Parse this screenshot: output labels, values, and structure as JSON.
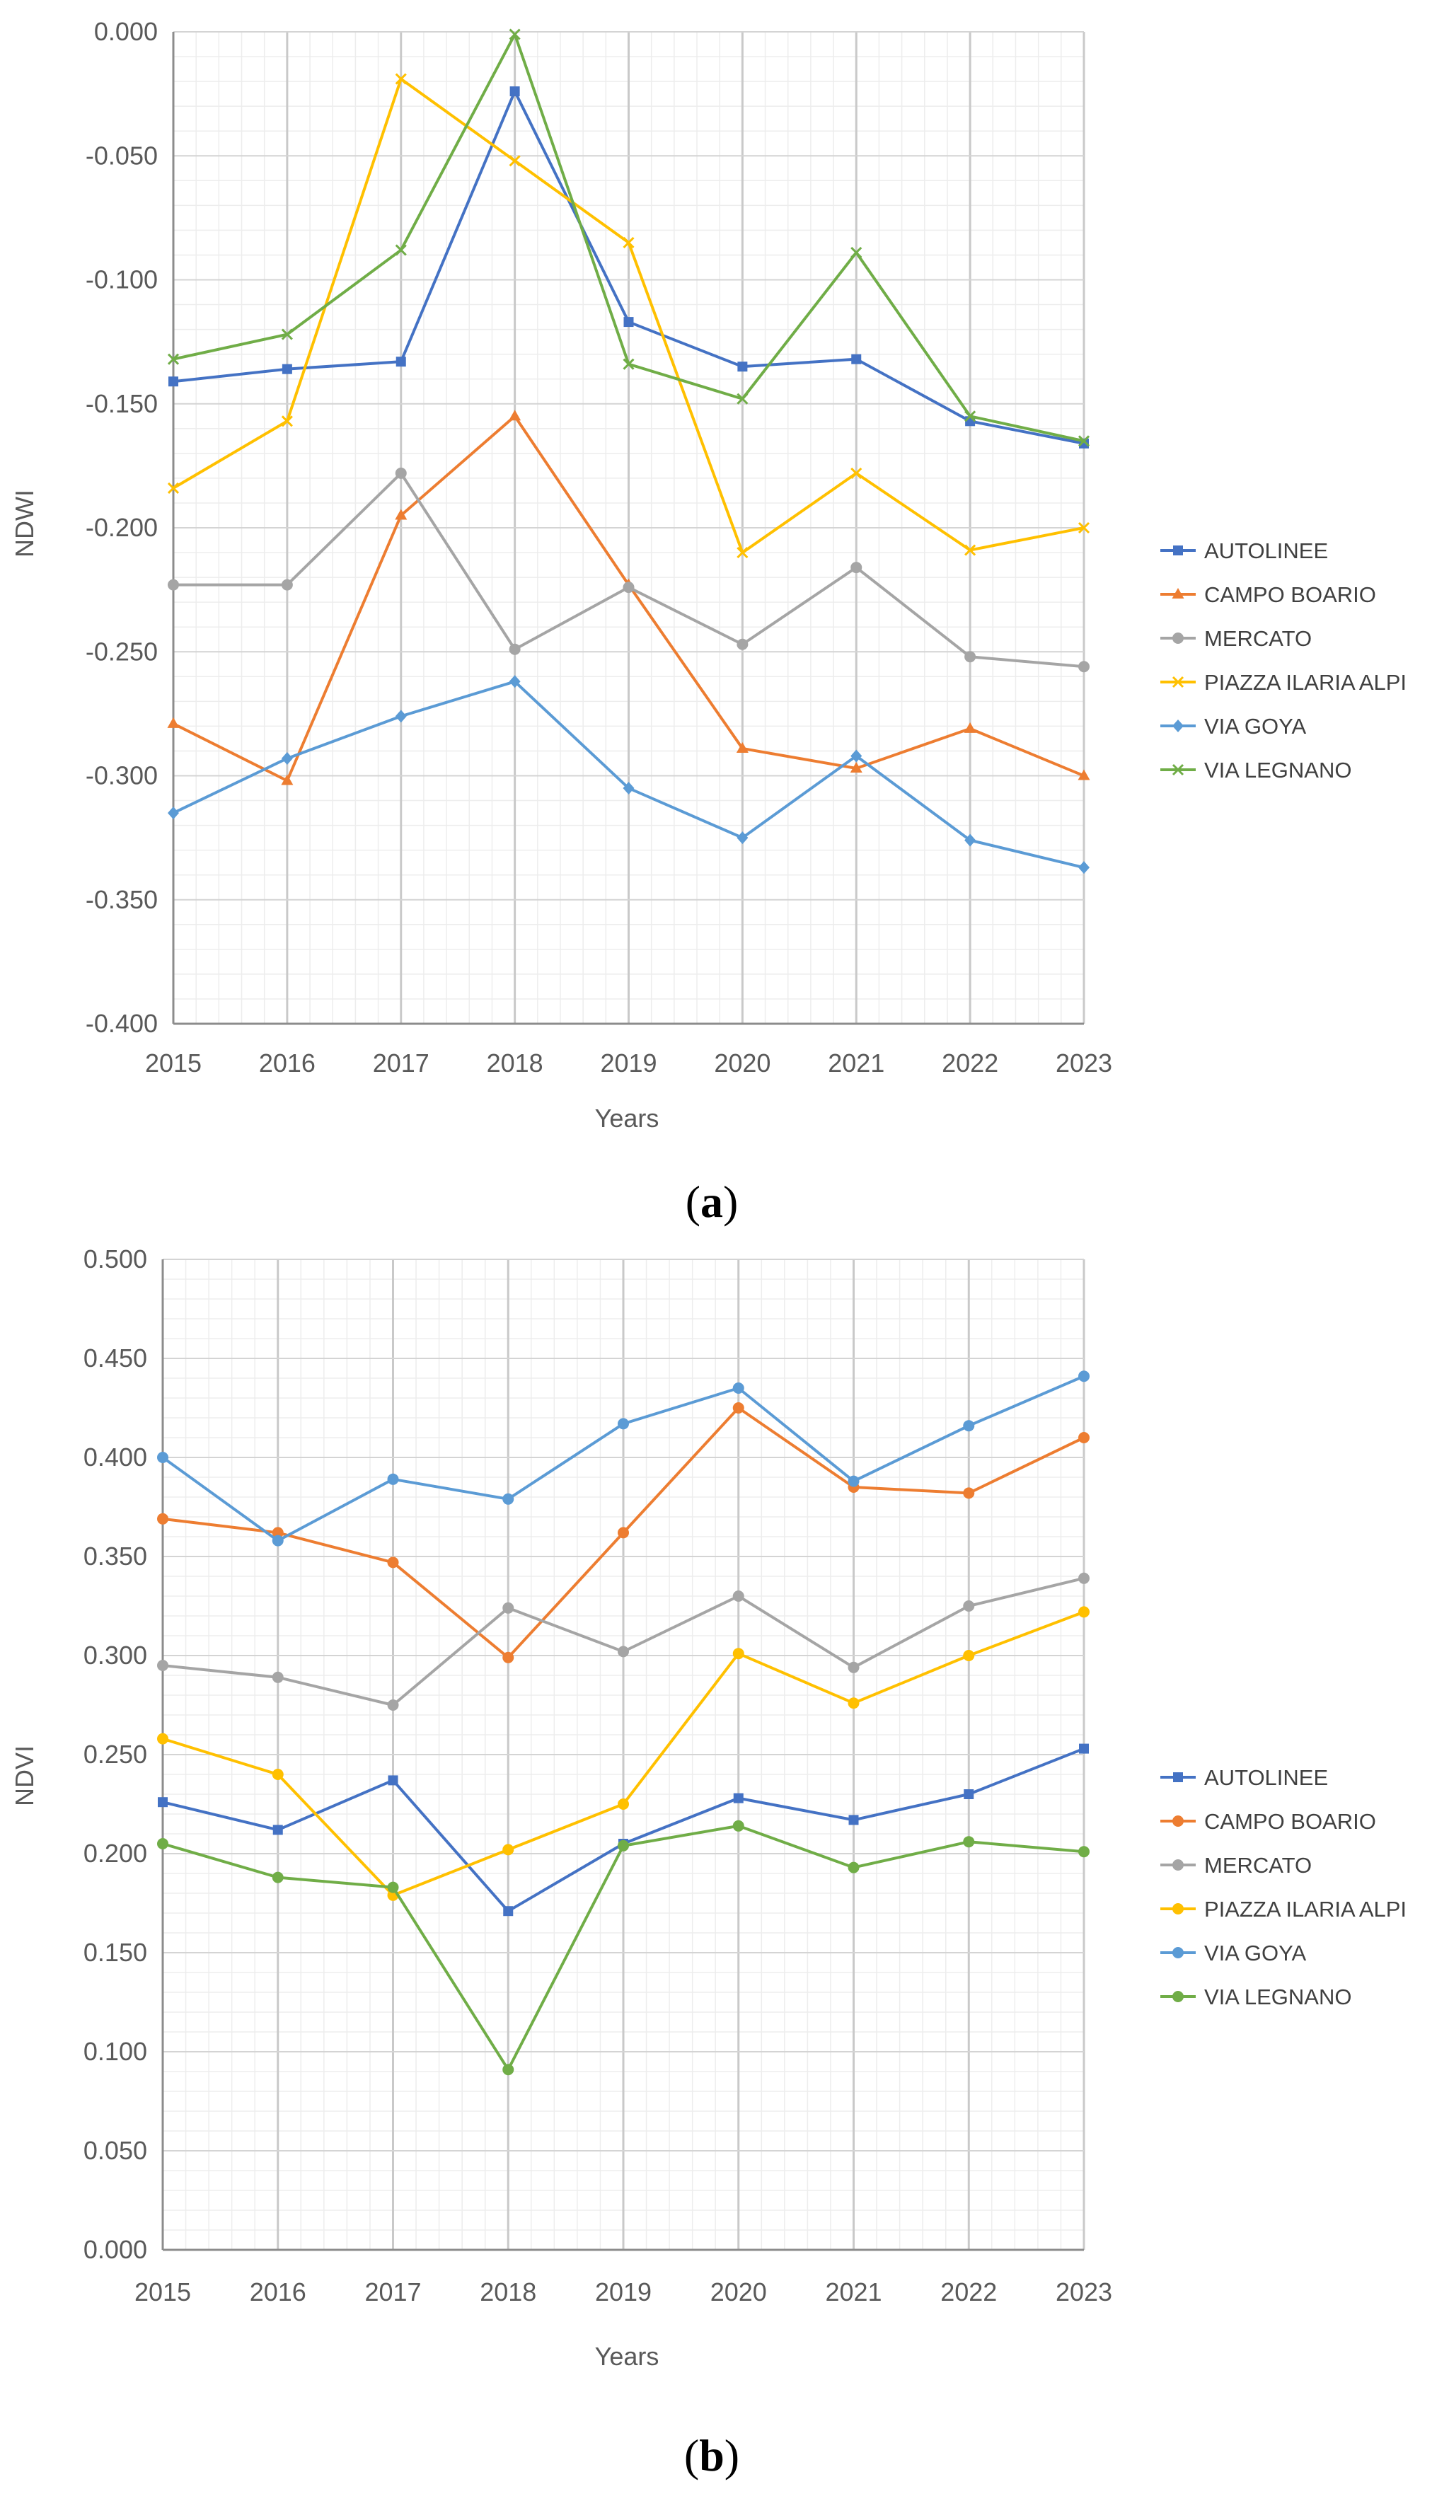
{
  "chart_data": [
    {
      "panel": "a",
      "panel_label": {
        "open": "(",
        "letter": "a",
        "close": ")"
      },
      "type": "line",
      "title": "",
      "xlabel": "Years",
      "ylabel": "NDWI",
      "ylim": [
        -0.4,
        0.0
      ],
      "y_major_step": 0.05,
      "y_minor_per_major": 5,
      "x_minor_per_major": 5,
      "y_decimals": 3,
      "grid": true,
      "legend_position": "right",
      "categories": [
        "2015",
        "2016",
        "2017",
        "2018",
        "2019",
        "2020",
        "2021",
        "2022",
        "2023"
      ],
      "series": [
        {
          "name": "AUTOLINEE",
          "color": "#4472C4",
          "marker": "square",
          "values": [
            -0.141,
            -0.136,
            -0.133,
            -0.024,
            -0.117,
            -0.135,
            -0.132,
            -0.157,
            -0.166
          ]
        },
        {
          "name": "CAMPO BOARIO",
          "color": "#ED7D31",
          "marker": "triangle",
          "values": [
            -0.279,
            -0.302,
            -0.195,
            -0.155,
            -0.223,
            -0.289,
            -0.297,
            -0.281,
            -0.3
          ]
        },
        {
          "name": "MERCATO",
          "color": "#A5A5A5",
          "marker": "circle",
          "values": [
            -0.223,
            -0.223,
            -0.178,
            -0.249,
            -0.224,
            -0.247,
            -0.216,
            -0.252,
            -0.256
          ]
        },
        {
          "name": "PIAZZA ILARIA ALPI",
          "color": "#FFC000",
          "marker": "x",
          "values": [
            -0.184,
            -0.157,
            -0.019,
            -0.052,
            -0.085,
            -0.21,
            -0.178,
            -0.209,
            -0.2
          ]
        },
        {
          "name": "VIA GOYA",
          "color": "#5B9BD5",
          "marker": "diamond",
          "values": [
            -0.315,
            -0.293,
            -0.276,
            -0.262,
            -0.305,
            -0.325,
            -0.292,
            -0.326,
            -0.337
          ]
        },
        {
          "name": "VIA LEGNANO",
          "color": "#70AD47",
          "marker": "x",
          "values": [
            -0.132,
            -0.122,
            -0.088,
            -0.001,
            -0.134,
            -0.148,
            -0.089,
            -0.155,
            -0.165
          ]
        }
      ]
    },
    {
      "panel": "b",
      "panel_label": {
        "open": "(",
        "letter": "b",
        "close": ")"
      },
      "type": "line",
      "title": "",
      "xlabel": "Years",
      "ylabel": "NDVI",
      "ylim": [
        0.0,
        0.5
      ],
      "y_major_step": 0.05,
      "y_minor_per_major": 5,
      "x_minor_per_major": 5,
      "y_decimals": 3,
      "grid": true,
      "legend_position": "right",
      "categories": [
        "2015",
        "2016",
        "2017",
        "2018",
        "2019",
        "2020",
        "2021",
        "2022",
        "2023"
      ],
      "series": [
        {
          "name": "AUTOLINEE",
          "color": "#4472C4",
          "marker": "square",
          "values": [
            0.226,
            0.212,
            0.237,
            0.171,
            0.205,
            0.228,
            0.217,
            0.23,
            0.253
          ]
        },
        {
          "name": "CAMPO BOARIO",
          "color": "#ED7D31",
          "marker": "circle",
          "values": [
            0.369,
            0.362,
            0.347,
            0.299,
            0.362,
            0.425,
            0.385,
            0.382,
            0.41
          ]
        },
        {
          "name": "MERCATO",
          "color": "#A5A5A5",
          "marker": "circle",
          "values": [
            0.295,
            0.289,
            0.275,
            0.324,
            0.302,
            0.33,
            0.294,
            0.325,
            0.339
          ]
        },
        {
          "name": "PIAZZA ILARIA ALPI",
          "color": "#FFC000",
          "marker": "circle",
          "values": [
            0.258,
            0.24,
            0.179,
            0.202,
            0.225,
            0.301,
            0.276,
            0.3,
            0.322
          ]
        },
        {
          "name": "VIA GOYA",
          "color": "#5B9BD5",
          "marker": "circle",
          "values": [
            0.4,
            0.358,
            0.389,
            0.379,
            0.417,
            0.435,
            0.388,
            0.416,
            0.441
          ]
        },
        {
          "name": "VIA LEGNANO",
          "color": "#70AD47",
          "marker": "circle",
          "values": [
            0.205,
            0.188,
            0.183,
            0.091,
            0.204,
            0.214,
            0.193,
            0.206,
            0.201
          ]
        }
      ]
    }
  ]
}
